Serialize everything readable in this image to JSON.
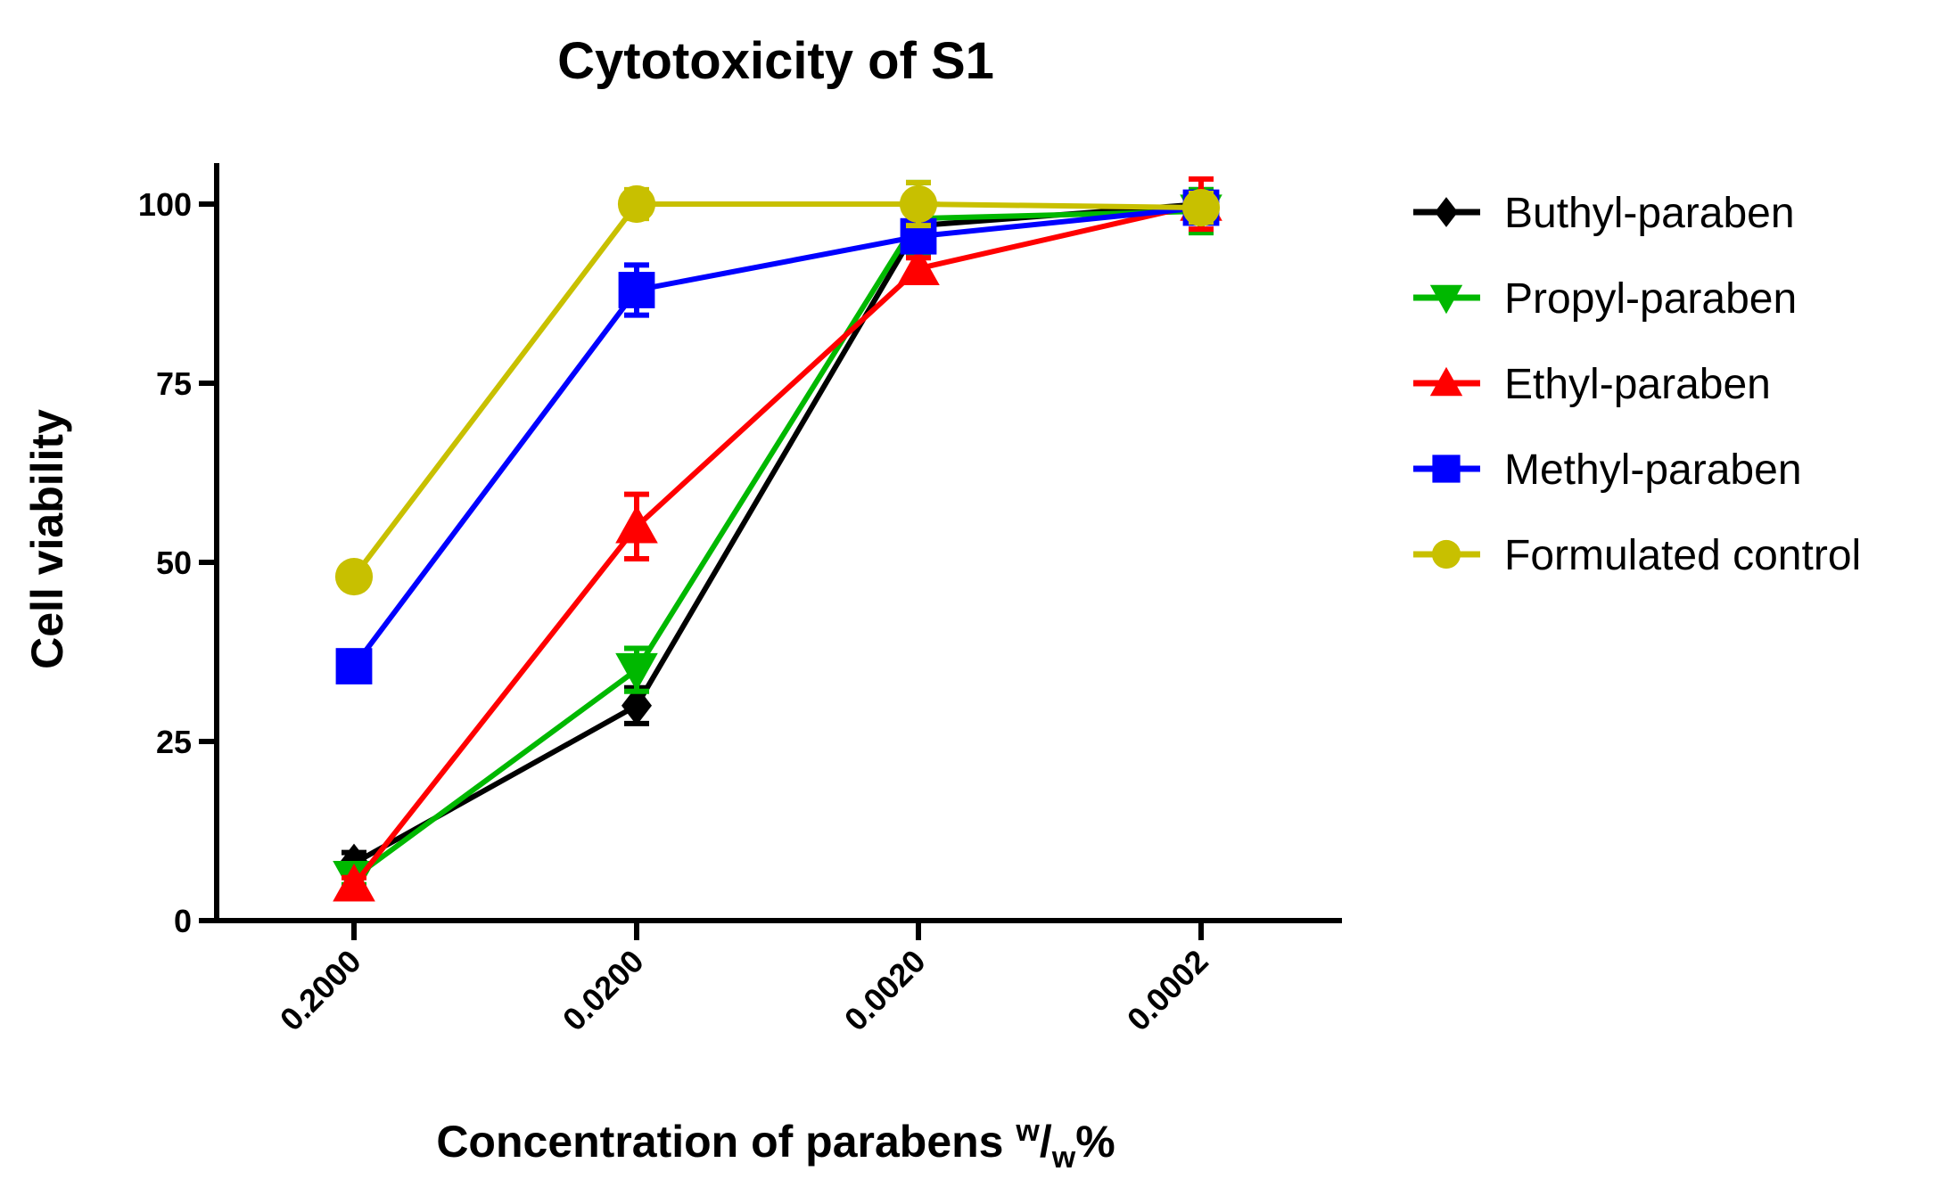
{
  "chart_data": {
    "type": "line",
    "title": "Cytotoxicity of S1",
    "ylabel": "Cell viability",
    "xlabel_main": "Concentration of parabens ",
    "xlabel_sup": "w",
    "xlabel_slash": "/",
    "xlabel_sub": "w",
    "xlabel_pct": "%",
    "categories": [
      "0.2000",
      "0.0200",
      "0.0020",
      "0.0002"
    ],
    "ylim": [
      0,
      105
    ],
    "yticks": [
      0,
      25,
      50,
      75,
      100
    ],
    "ytick_labels": [
      "0",
      "25",
      "50",
      "75",
      "100"
    ],
    "legend_position": "right",
    "series": [
      {
        "name": "Buthyl-paraben",
        "color": "#000000",
        "marker": "diamond",
        "values": [
          8,
          30,
          97,
          100
        ],
        "errors": [
          1.5,
          2.5,
          2,
          2
        ]
      },
      {
        "name": "Propyl-paraben",
        "color": "#00b800",
        "marker": "triangle-down",
        "values": [
          6,
          35,
          98,
          99
        ],
        "errors": [
          1,
          3,
          5,
          3
        ]
      },
      {
        "name": "Ethyl-paraben",
        "color": "#ff0000",
        "marker": "triangle-up",
        "values": [
          5,
          55,
          91,
          100
        ],
        "errors": [
          1,
          4.5,
          1.5,
          3.5
        ]
      },
      {
        "name": "Methyl-paraben",
        "color": "#0000ff",
        "marker": "square",
        "values": [
          35.5,
          88,
          95.5,
          99.5
        ],
        "errors": [
          1.5,
          3.5,
          2,
          2
        ]
      },
      {
        "name": "Formulated control",
        "color": "#c8c000",
        "marker": "circle",
        "values": [
          48,
          100,
          100,
          99.5
        ],
        "errors": [
          1,
          2,
          3,
          2
        ]
      }
    ]
  }
}
